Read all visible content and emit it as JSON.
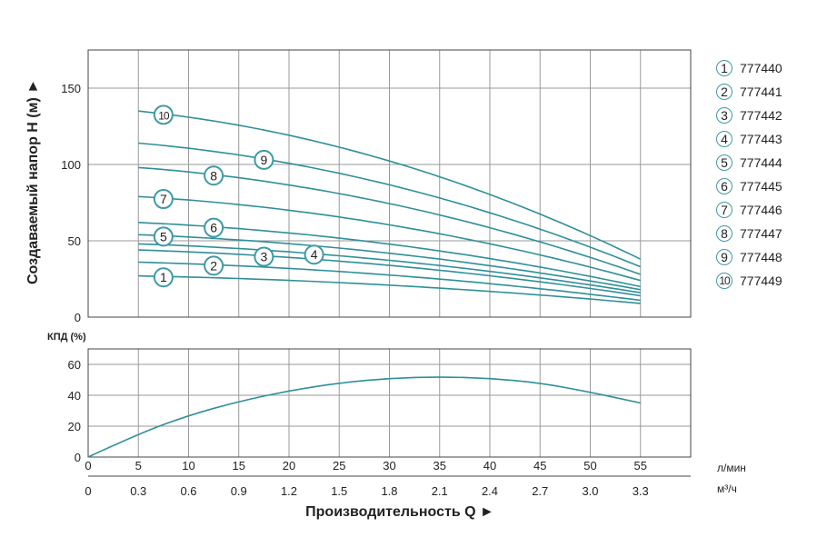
{
  "colors": {
    "curve": "#2f8f98",
    "grid": "#9a9a9a",
    "frame": "#444444",
    "badge_border": "#3f9aa3"
  },
  "chart_data": [
    {
      "type": "line",
      "ylabel": "Создаваемый напор H (м) ►",
      "ylim": [
        0,
        175
      ],
      "xlim": [
        0,
        60
      ],
      "yticks": [
        "0",
        "50",
        "100",
        "150"
      ],
      "grid": true,
      "series": [
        {
          "name": "1",
          "x": [
            5,
            55
          ],
          "y": [
            27,
            9
          ]
        },
        {
          "name": "2",
          "x": [
            5,
            55
          ],
          "y": [
            36,
            11
          ]
        },
        {
          "name": "3",
          "x": [
            5,
            55
          ],
          "y": [
            44,
            14
          ]
        },
        {
          "name": "4",
          "x": [
            5,
            55
          ],
          "y": [
            48,
            16
          ]
        },
        {
          "name": "5",
          "x": [
            5,
            55
          ],
          "y": [
            54,
            18
          ]
        },
        {
          "name": "6",
          "x": [
            5,
            55
          ],
          "y": [
            62,
            20
          ]
        },
        {
          "name": "7",
          "x": [
            5,
            55
          ],
          "y": [
            79,
            24
          ]
        },
        {
          "name": "8",
          "x": [
            5,
            55
          ],
          "y": [
            98,
            28
          ]
        },
        {
          "name": "9",
          "x": [
            5,
            55
          ],
          "y": [
            114,
            33
          ]
        },
        {
          "name": "10",
          "x": [
            5,
            55
          ],
          "y": [
            135,
            38
          ]
        }
      ]
    },
    {
      "type": "line",
      "ylabel": "КПД (%)",
      "ylim": [
        0,
        70
      ],
      "xlim": [
        0,
        60
      ],
      "yticks": [
        "0",
        "20",
        "40",
        "60"
      ],
      "grid": true,
      "series": [
        {
          "x": [
            0,
            5,
            10,
            15,
            20,
            25,
            30,
            35,
            40,
            45,
            50,
            55
          ],
          "y": [
            0,
            15,
            27,
            36,
            43,
            48,
            51,
            52,
            51,
            48,
            42,
            35
          ]
        }
      ]
    }
  ],
  "x_axis": {
    "ticks_lmin": [
      "0",
      "5",
      "10",
      "15",
      "20",
      "25",
      "30",
      "35",
      "40",
      "45",
      "50",
      "55"
    ],
    "ticks_m3h": [
      "0",
      "0.3",
      "0.6",
      "0.9",
      "1.2",
      "1.5",
      "1.8",
      "2.1",
      "2.4",
      "2.7",
      "3.0",
      "3.3"
    ],
    "unit_lmin": "л/мин",
    "unit_m3h": "м³/ч",
    "title": "Производительность Q ►"
  },
  "legend": [
    {
      "num": "1",
      "label": "777440"
    },
    {
      "num": "2",
      "label": "777441"
    },
    {
      "num": "3",
      "label": "777442"
    },
    {
      "num": "4",
      "label": "777443"
    },
    {
      "num": "5",
      "label": "777444"
    },
    {
      "num": "6",
      "label": "777445"
    },
    {
      "num": "7",
      "label": "777446"
    },
    {
      "num": "8",
      "label": "777447"
    },
    {
      "num": "9",
      "label": "777448"
    },
    {
      "num": "10",
      "label": "777449"
    }
  ]
}
